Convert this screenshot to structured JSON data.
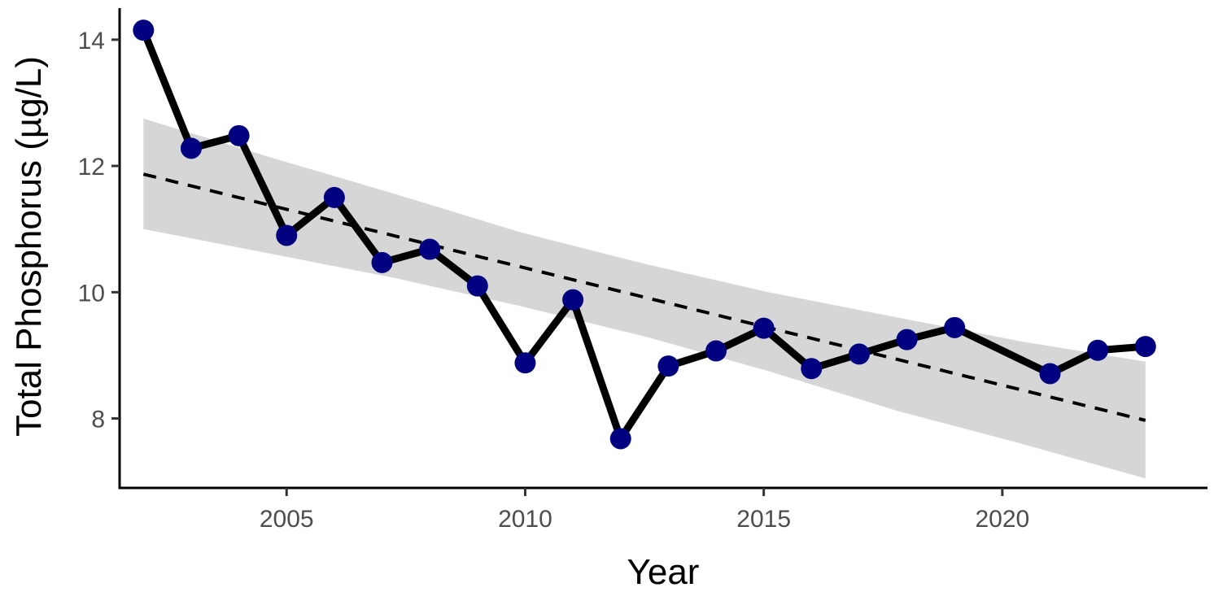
{
  "chart_data": {
    "type": "line",
    "title": "",
    "xlabel": "Year",
    "ylabel": "Total Phosphorus (µg/L)",
    "xlim": [
      2001.5,
      2024.3
    ],
    "ylim": [
      6.9,
      14.5
    ],
    "x_ticks": [
      2005,
      2010,
      2015,
      2020
    ],
    "x_tick_labels": [
      "2005",
      "2010",
      "2015",
      "2020"
    ],
    "y_ticks": [
      8,
      10,
      12,
      14
    ],
    "y_tick_labels": [
      "8",
      "10",
      "12",
      "14"
    ],
    "grid": false,
    "legend": "none",
    "series": [
      {
        "type": "line+points",
        "x": [
          2002,
          2003,
          2004,
          2005,
          2006,
          2007,
          2008,
          2009,
          2010,
          2011,
          2012,
          2013,
          2014,
          2015,
          2016,
          2017,
          2018,
          2019,
          2021,
          2022,
          2023
        ],
        "values": [
          14.15,
          12.28,
          12.48,
          10.9,
          11.5,
          10.47,
          10.68,
          10.1,
          8.88,
          9.88,
          7.68,
          8.83,
          9.07,
          9.43,
          8.79,
          9.02,
          9.25,
          9.44,
          8.71,
          9.08,
          9.14
        ],
        "line_color": "#000000",
        "point_color": "#000080"
      },
      {
        "type": "trend",
        "style": "dashed",
        "color": "#000000",
        "x": [
          2002,
          2023
        ],
        "values": [
          11.87,
          7.97
        ],
        "ci_lower": [
          11.0,
          10.62,
          10.22,
          9.78,
          9.3,
          8.75,
          8.12,
          7.6,
          7.05
        ],
        "ci_upper": [
          12.75,
          12.15,
          11.55,
          10.95,
          10.45,
          10.0,
          9.6,
          9.22,
          8.9
        ],
        "ci_x": [
          2002,
          2004.6,
          2007.3,
          2009.9,
          2012.5,
          2015.1,
          2017.8,
          2020.4,
          2023
        ],
        "ci_color": "#d6d6d6"
      }
    ]
  }
}
